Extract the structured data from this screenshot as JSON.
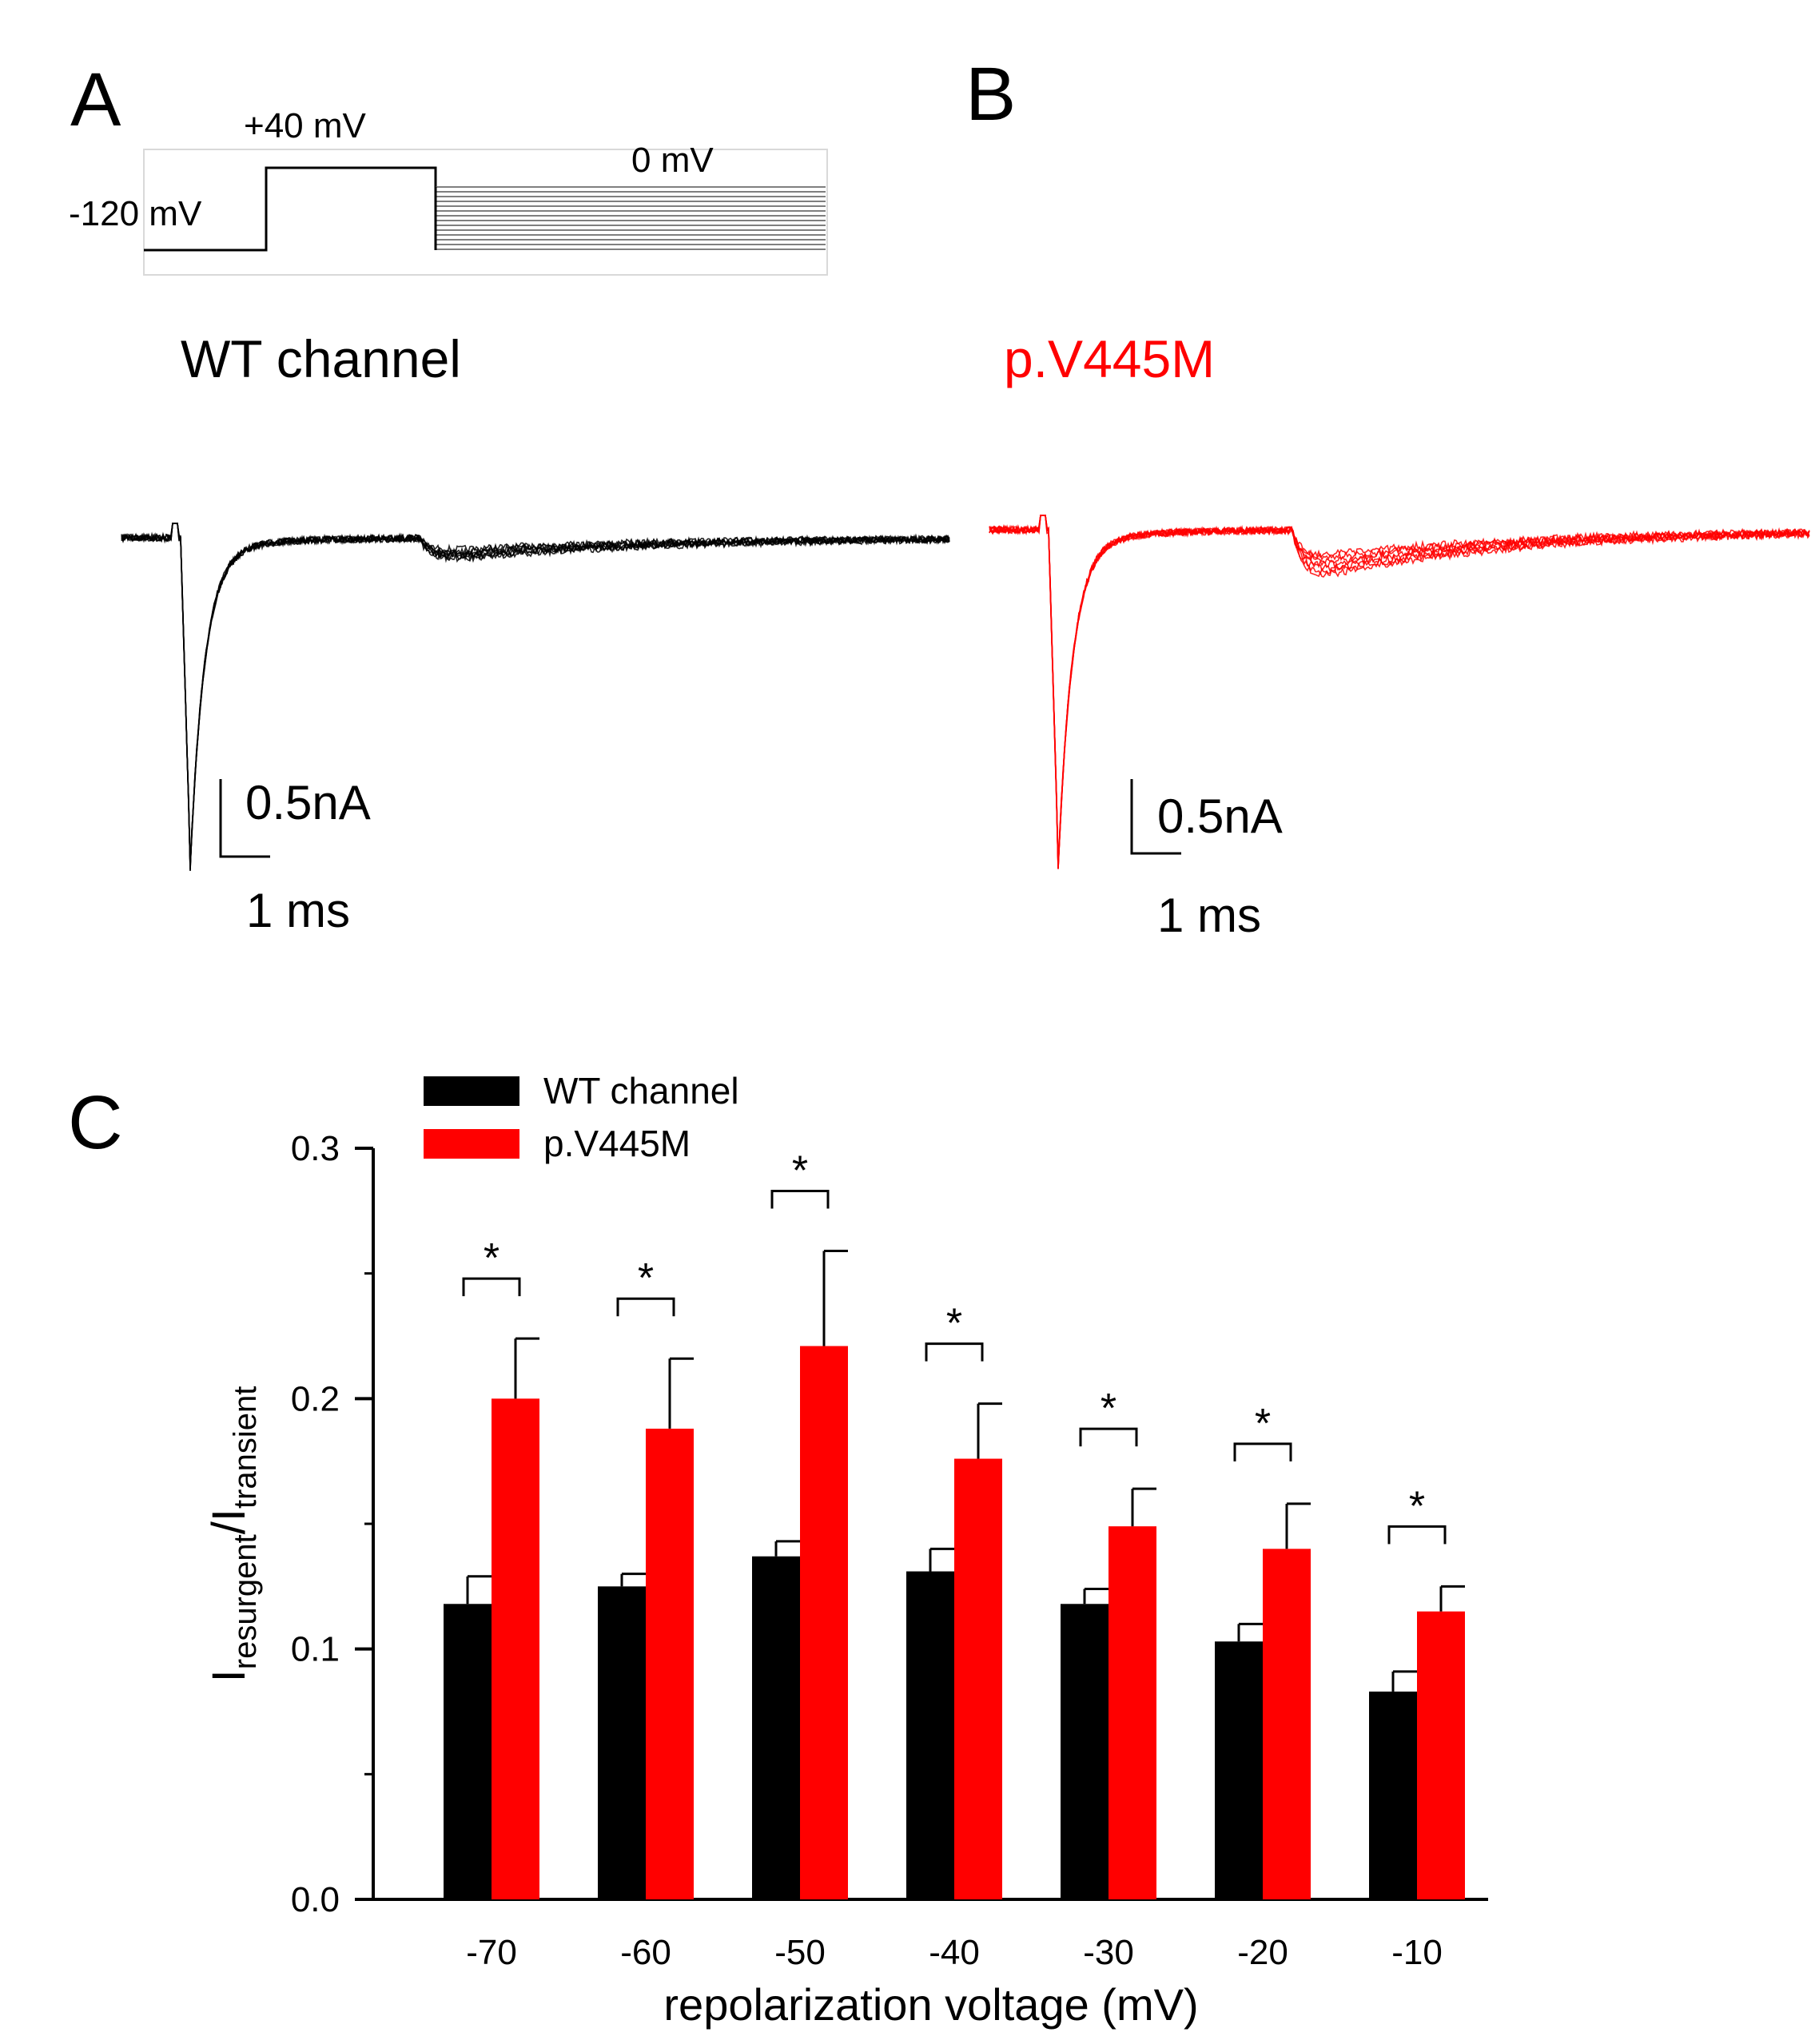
{
  "colors": {
    "wt": "#000000",
    "mutant": "#ff0000"
  },
  "panel_a": {
    "letter": "A",
    "protocol": {
      "hold_label": "-120 mV",
      "step_label": "+40 mV",
      "repol_label": "0 mV"
    },
    "trace_title": "WT channel",
    "scale_current": "0.5nA",
    "scale_time": "1 ms"
  },
  "panel_b": {
    "letter": "B",
    "trace_title": "p.V445M",
    "scale_current": "0.5nA",
    "scale_time": "1 ms"
  },
  "panel_c": {
    "letter": "C"
  },
  "chart_data": {
    "type": "bar",
    "categories": [
      "-70",
      "-60",
      "-50",
      "-40",
      "-30",
      "-20",
      "-10"
    ],
    "series": [
      {
        "name": "WT channel",
        "color": "#000000",
        "values": [
          0.118,
          0.125,
          0.137,
          0.131,
          0.118,
          0.103,
          0.083
        ],
        "errors": [
          0.011,
          0.005,
          0.006,
          0.009,
          0.006,
          0.007,
          0.008
        ]
      },
      {
        "name": "p.V445M",
        "color": "#ff0000",
        "values": [
          0.2,
          0.188,
          0.221,
          0.176,
          0.149,
          0.14,
          0.115
        ],
        "errors": [
          0.024,
          0.028,
          0.038,
          0.022,
          0.015,
          0.018,
          0.01
        ]
      }
    ],
    "significance": [
      "*",
      "*",
      "*",
      "*",
      "*",
      "*",
      "*"
    ],
    "xlabel": "repolarization voltage (mV)",
    "ylabel": {
      "main": "I",
      "sub1": "resurgent",
      "slash": "/I",
      "sub2": "transient"
    },
    "ylim": [
      0,
      0.3
    ],
    "yticks": [
      "0.0",
      "0.1",
      "0.2",
      "0.3"
    ],
    "legend_position": "top-left",
    "grid": false
  }
}
